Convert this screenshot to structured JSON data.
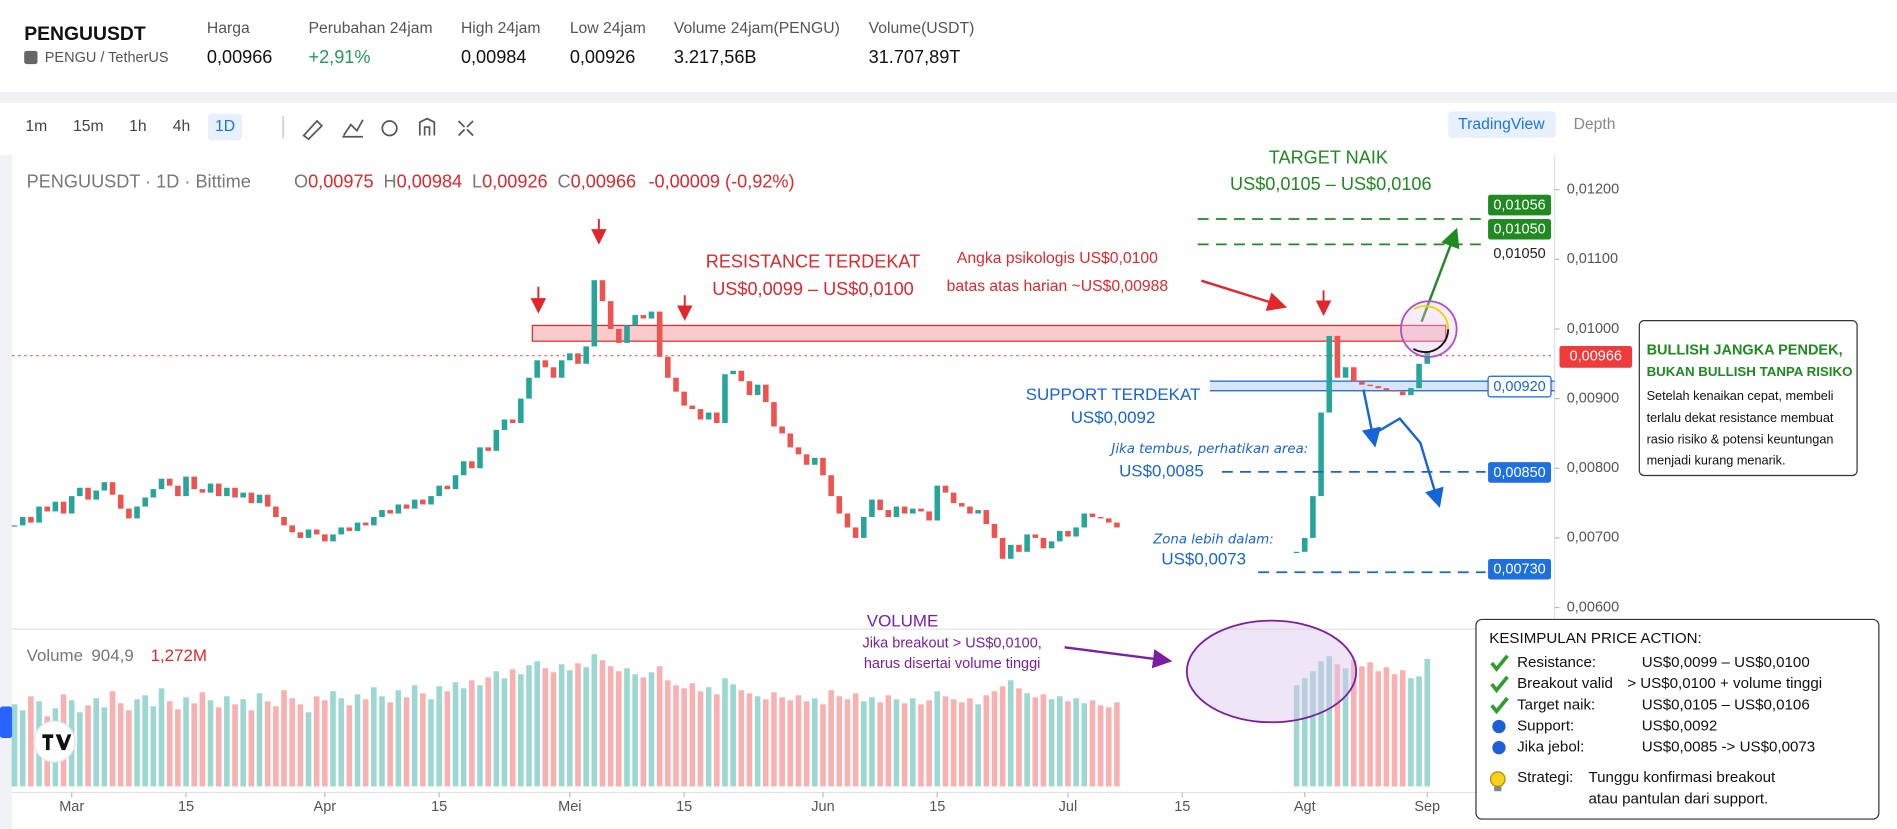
{
  "header": {
    "symbol": "PENGUUSDT",
    "pair": "PENGU / TetherUS",
    "stats": [
      {
        "label": "Harga",
        "value": "0,00966"
      },
      {
        "label": "Perubahan 24jam",
        "value": "+2,91%"
      },
      {
        "label": "High 24jam",
        "value": "0,00984"
      },
      {
        "label": "Low 24jam",
        "value": "0,00926"
      },
      {
        "label": "Volume 24jam(PENGU)",
        "value": "3.217,56B"
      },
      {
        "label": "Volume(USDT)",
        "value": "31.707,89T"
      }
    ]
  },
  "toolbar": {
    "intervals": [
      "1m",
      "15m",
      "1h",
      "4h",
      "1D"
    ],
    "active_interval": "1D",
    "tabs": [
      "TradingView",
      "Depth"
    ],
    "active_tab": "TradingView"
  },
  "chart_data": {
    "type": "candlestick",
    "legend": {
      "title": "PENGUUSDT · 1D · Bittime",
      "ohlc": [
        {
          "key": "O",
          "value": "0,00975"
        },
        {
          "key": "H",
          "value": "0,00984"
        },
        {
          "key": "L",
          "value": "0,00926"
        },
        {
          "key": "C",
          "value": "0,00966"
        }
      ],
      "change": "-0,00009 (-0,92%)"
    },
    "up_color": "#26a69a",
    "down_color": "#ef5350",
    "close": [
      0.00718,
      0.0073,
      0.00722,
      0.00745,
      0.00738,
      0.00752,
      0.00735,
      0.0076,
      0.00772,
      0.00755,
      0.00768,
      0.0078,
      0.00762,
      0.00742,
      0.00728,
      0.00745,
      0.00758,
      0.0077,
      0.00785,
      0.00775,
      0.0076,
      0.00788,
      0.0077,
      0.00765,
      0.00778,
      0.0076,
      0.00772,
      0.00758,
      0.00765,
      0.0075,
      0.00762,
      0.00745,
      0.0073,
      0.00718,
      0.00708,
      0.007,
      0.00712,
      0.00705,
      0.00695,
      0.00705,
      0.00715,
      0.0071,
      0.00722,
      0.00718,
      0.0073,
      0.0074,
      0.00735,
      0.00748,
      0.00742,
      0.00755,
      0.00748,
      0.0076,
      0.00775,
      0.0077,
      0.0079,
      0.0081,
      0.008,
      0.0083,
      0.00825,
      0.00855,
      0.0087,
      0.00865,
      0.009,
      0.0093,
      0.00955,
      0.00945,
      0.0093,
      0.00955,
      0.00965,
      0.0095,
      0.00975,
      0.0107,
      0.0104,
      0.01,
      0.0098,
      0.01005,
      0.0102,
      0.01015,
      0.01025,
      0.0096,
      0.0093,
      0.0091,
      0.0089,
      0.00885,
      0.0087,
      0.0088,
      0.00865,
      0.00935,
      0.0094,
      0.00925,
      0.00905,
      0.0092,
      0.00895,
      0.0086,
      0.0085,
      0.0083,
      0.0082,
      0.00805,
      0.00815,
      0.0079,
      0.0076,
      0.00735,
      0.00715,
      0.007,
      0.0073,
      0.00755,
      0.0074,
      0.0073,
      0.00745,
      0.00735,
      0.00742,
      0.00738,
      0.00725,
      0.00775,
      0.00765,
      0.0075,
      0.00745,
      0.00735,
      0.0074,
      0.0072,
      0.007,
      0.0067,
      0.0069,
      0.0068,
      0.00705,
      0.007,
      0.00685,
      0.00695,
      0.0071,
      0.00702,
      0.00715,
      0.00735,
      0.0073,
      0.00728,
      0.00722,
      0.00715,
      null,
      null,
      null,
      null,
      null,
      null,
      null,
      null,
      null,
      null,
      null,
      null,
      null,
      null,
      null,
      null,
      null,
      null,
      null,
      null,
      null,
      0.0068,
      0.007,
      0.0076,
      0.0088,
      0.0099,
      0.0093,
      0.00945,
      0.00925,
      0.0092,
      0.00918,
      0.00915,
      0.00912,
      0.0091,
      0.00905,
      0.00915,
      0.0095,
      0.00966
    ],
    "volume_title": "Volume",
    "volume_ma": "904,9",
    "volume_last": "1,272M",
    "volume": [
      820,
      760,
      900,
      850,
      700,
      780,
      920,
      860,
      740,
      810,
      880,
      790,
      950,
      830,
      760,
      870,
      910,
      800,
      980,
      850,
      770,
      890,
      830,
      940,
      860,
      790,
      900,
      820,
      870,
      760,
      930,
      850,
      800,
      960,
      880,
      820,
      740,
      900,
      860,
      950,
      880,
      810,
      920,
      870,
      990,
      900,
      840,
      960,
      890,
      1010,
      930,
      870,
      1000,
      950,
      1040,
      980,
      1060,
      1010,
      1090,
      1150,
      1080,
      1170,
      1120,
      1210,
      1250,
      1180,
      1140,
      1220,
      1160,
      1230,
      1190,
      1320,
      1260,
      1200,
      1150,
      1180,
      1120,
      1090,
      1140,
      1200,
      1060,
      1010,
      980,
      1030,
      950,
      990,
      920,
      1080,
      1020,
      960,
      930,
      900,
      870,
      940,
      890,
      860,
      910,
      850,
      880,
      820,
      960,
      900,
      870,
      930,
      850,
      890,
      840,
      910,
      870,
      830,
      880,
      820,
      860,
      950,
      900,
      870,
      840,
      880,
      820,
      910,
      950,
      1000,
      1060,
      980,
      930,
      890,
      920,
      870,
      900,
      850,
      880,
      830,
      860,
      810,
      790,
      840,
      null,
      null,
      null,
      null,
      null,
      null,
      null,
      null,
      null,
      null,
      null,
      null,
      null,
      null,
      null,
      null,
      null,
      null,
      null,
      null,
      null,
      1010,
      1080,
      1150,
      1250,
      1300,
      1220,
      1180,
      1260,
      1200,
      1240,
      1150,
      1190,
      1120,
      1160,
      1080,
      1100,
      1272
    ],
    "xlim": [
      -0.3,
      188.6
    ],
    "ylim": [
      0.00569,
      0.0125
    ],
    "vlim": [
      0,
      1450
    ],
    "yticks": [
      {
        "value": 0.012,
        "label": "0,01200"
      },
      {
        "value": 0.011,
        "label": "0,01100"
      },
      {
        "value": 0.01,
        "label": "0,01000"
      },
      {
        "value": 0.009,
        "label": "0,00900"
      },
      {
        "value": 0.008,
        "label": "0,00800"
      },
      {
        "value": 0.007,
        "label": "0,00700"
      },
      {
        "value": 0.006,
        "label": "0,00600"
      }
    ],
    "xticks": [
      {
        "value": 7,
        "label": "Mar"
      },
      {
        "value": 21,
        "label": "15"
      },
      {
        "value": 38,
        "label": "Apr"
      },
      {
        "value": 52,
        "label": "15"
      },
      {
        "value": 68,
        "label": "Mei"
      },
      {
        "value": 82,
        "label": "15"
      },
      {
        "value": 99,
        "label": "Jun"
      },
      {
        "value": 113,
        "label": "15"
      },
      {
        "value": 129,
        "label": "Jul"
      },
      {
        "value": 143,
        "label": "15"
      },
      {
        "value": 158,
        "label": "Agt"
      },
      {
        "value": 173,
        "label": "Sep"
      }
    ],
    "annotations": {
      "target": {
        "title": "TARGET NAIK",
        "range": "US$0,0105 – US$0,0106"
      },
      "resistance": {
        "title": "RESISTANCE TERDEKAT",
        "range": "US$0,0099 – US$0,0100"
      },
      "psychological": [
        "Angka psikologis US$0,0100",
        "batas atas harian ~US$0,00988"
      ],
      "support": {
        "title": "SUPPORT TERDEKAT",
        "value": "US$0,0092"
      },
      "breakdown": {
        "note": "Jika tembus, perhatikan area:",
        "value": "US$0,0085"
      },
      "deeper": {
        "note": "Zona lebih dalam:",
        "value": "US$0,0073"
      },
      "price_tags": [
        "0,01056",
        "0,01050",
        "0,01050",
        "0,00966",
        "0,00920",
        "0,00850",
        "0,00730"
      ],
      "bullish_box": {
        "title": [
          "BULLISH JANGKA PENDEK,",
          "BUKAN BULLISH TANPA RISIKO"
        ],
        "body": [
          "Setelah kenaikan cepat, membeli",
          "terlalu dekat resistance membuat",
          "rasio risiko & potensi keuntungan",
          "menjadi kurang menarik."
        ]
      },
      "volume_note": {
        "title": "VOLUME",
        "lines": [
          "Jika breakout > US$0,0100,",
          "harus disertai volume tinggi"
        ]
      },
      "summary": {
        "title": "KESIMPULAN PRICE ACTION:",
        "rows": [
          {
            "label": "Resistance:",
            "value": "US$0,0099 – US$0,0100"
          },
          {
            "label": "Breakout valid",
            "value": "> US$0,0100 + volume tinggi"
          },
          {
            "label": "Target naik:",
            "value": "US$0,0105 – US$0,0106"
          },
          {
            "label": "Support:",
            "value": "US$0,0092"
          },
          {
            "label": "Jika jebol:",
            "value": "US$0,0085 -> US$0,0073"
          }
        ],
        "strategy": {
          "label": "Strategi:",
          "lines": [
            "Tunggu konfirmasi breakout",
            "atau pantulan dari support."
          ]
        }
      }
    }
  }
}
